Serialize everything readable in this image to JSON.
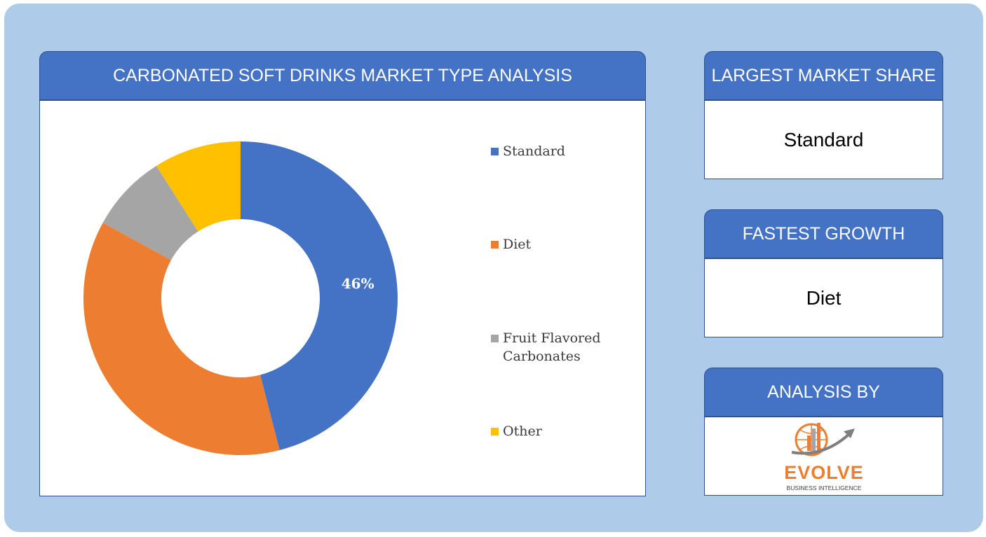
{
  "main_panel": {
    "title": "CARBONATED SOFT DRINKS MARKET TYPE ANALYSIS"
  },
  "chart_data": {
    "type": "pie",
    "donut": true,
    "categories": [
      "Standard",
      "Diet",
      "Fruit Flavored Carbonates",
      "Other"
    ],
    "values": [
      46,
      37,
      8,
      9
    ],
    "colors": [
      "#4472c4",
      "#ed7d31",
      "#a5a5a5",
      "#ffc000"
    ],
    "data_labels": [
      "46%",
      "",
      "",
      ""
    ],
    "legend_position": "right"
  },
  "side": {
    "largest": {
      "title": "LARGEST MARKET SHARE",
      "value": "Standard"
    },
    "fastest": {
      "title": "FASTEST GROWTH",
      "value": "Diet"
    },
    "analysis": {
      "title": "ANALYSIS BY",
      "logo_word": "EVOLVE",
      "logo_tagline": "BUSINESS INTELLIGENCE"
    }
  }
}
